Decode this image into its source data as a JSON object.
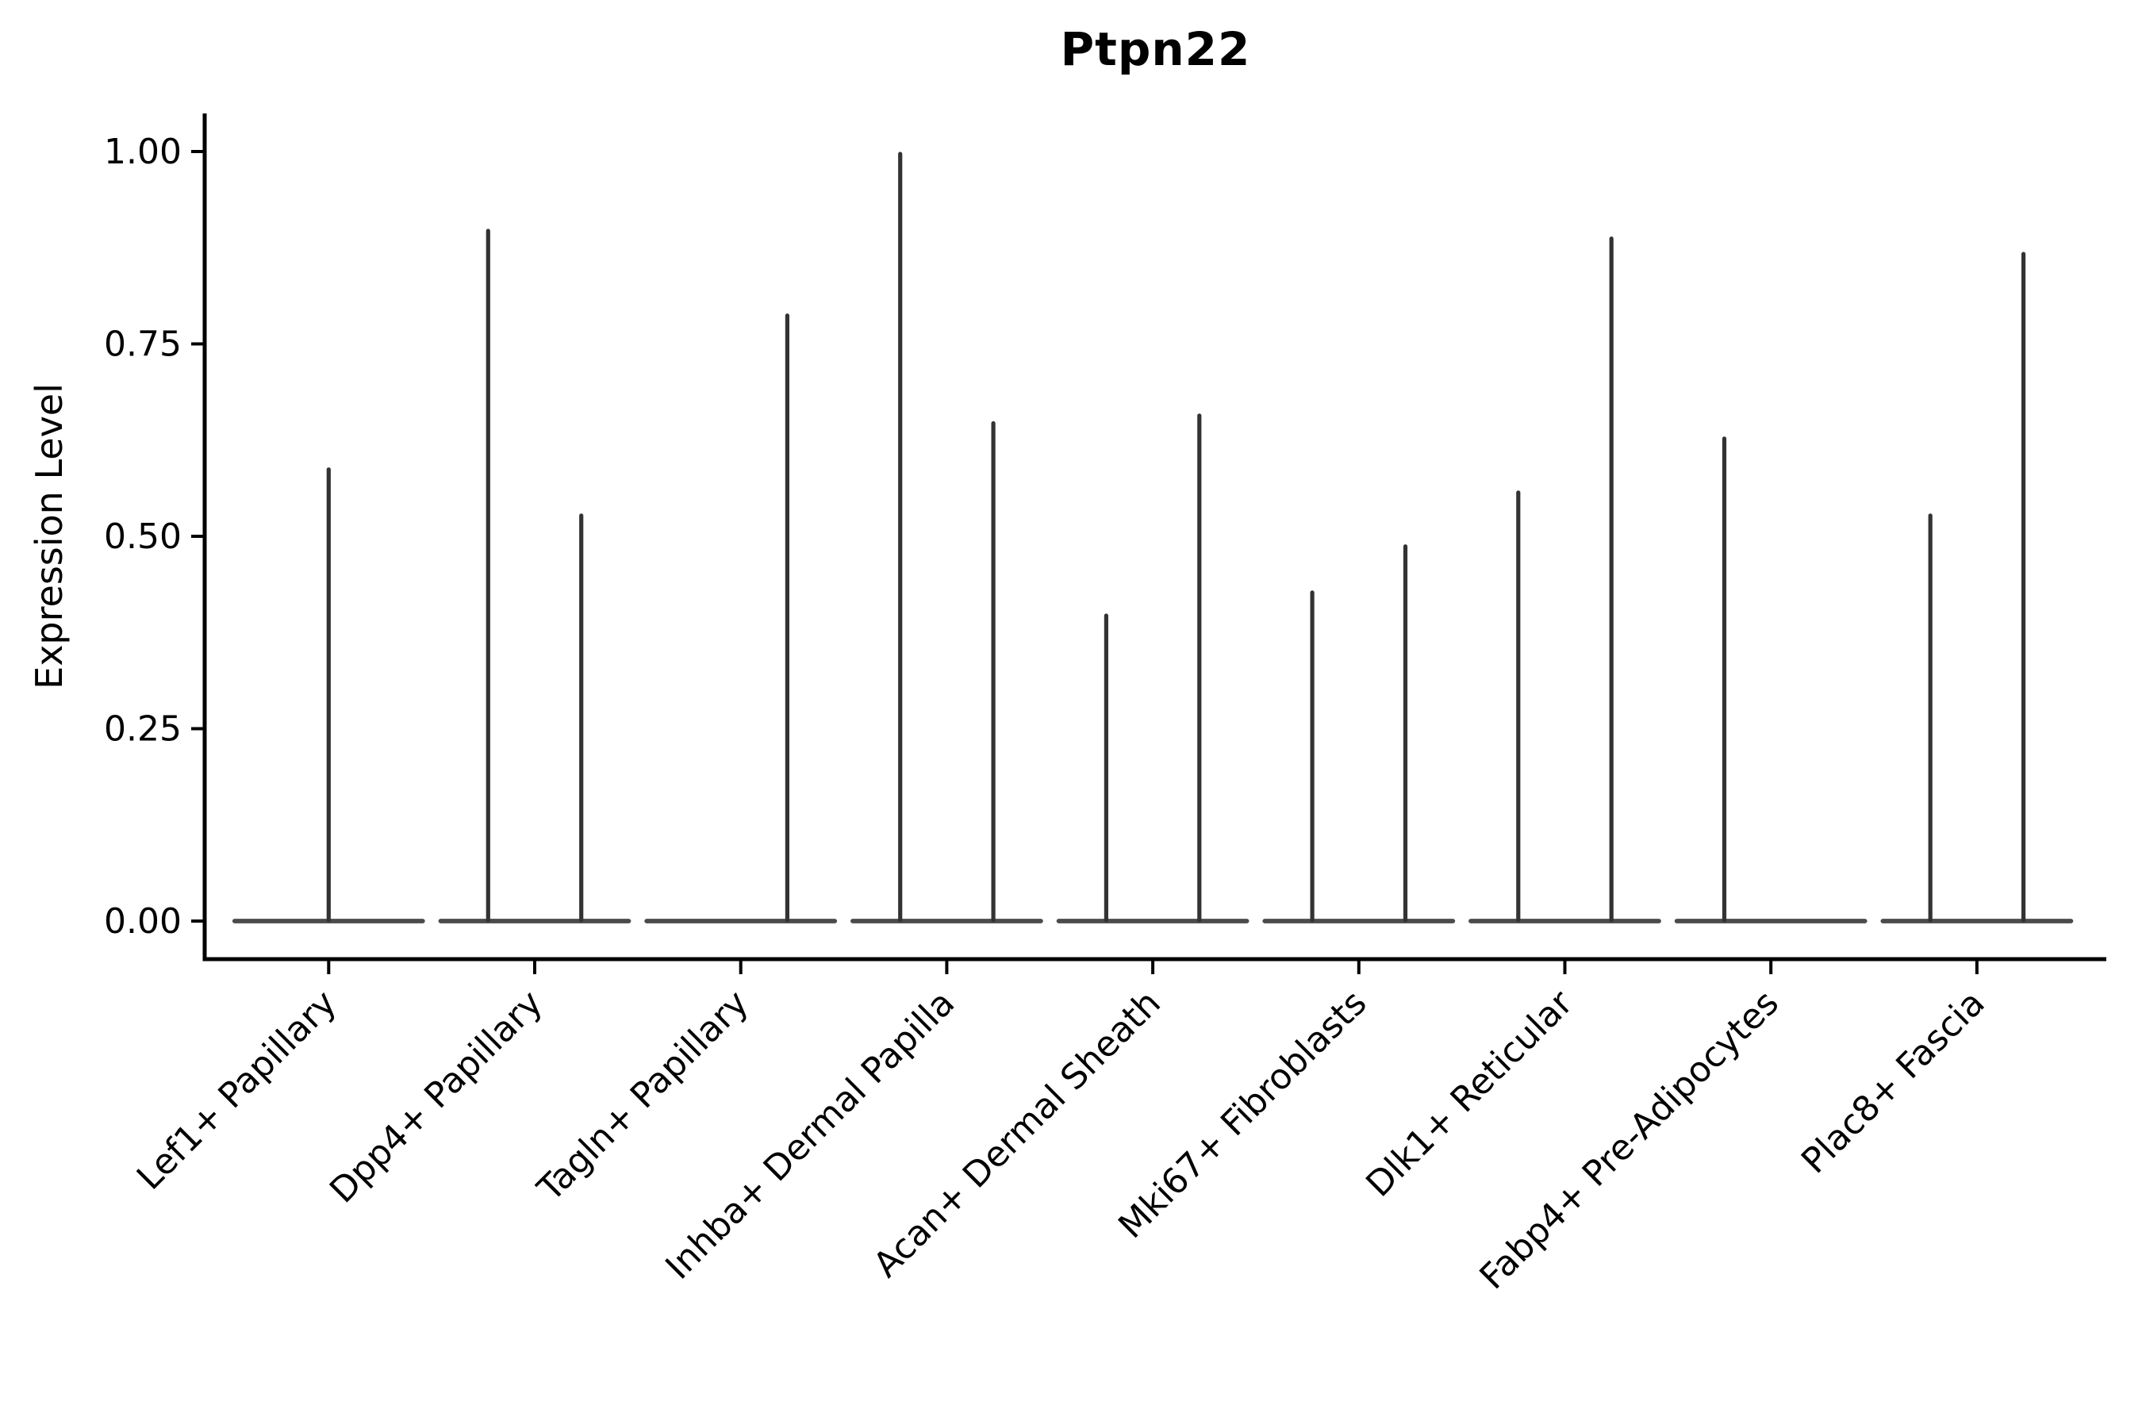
{
  "figure": {
    "title": "Ptpn22",
    "background_color": "#ffffff",
    "axis_color": "#000000",
    "violin_color": "#333333",
    "baseline_color": "#3c3c3c",
    "text_color": "#000000"
  },
  "chart_data": {
    "type": "violin",
    "title": "Ptpn22",
    "xlabel": "",
    "ylabel": "Expression Level",
    "ylim": [
      0,
      1
    ],
    "ytick_values": [
      0,
      0.25,
      0.5,
      0.75,
      1.0
    ],
    "ytick_labels": [
      "0.00",
      "0.25",
      "0.50",
      "0.75",
      "1.00"
    ],
    "grid": false,
    "legend": "none",
    "x_label_rotation_deg": 45,
    "categories": [
      "Lef1+ Papillary",
      "Dpp4+ Papillary",
      "Tagln+ Papillary",
      "Inhba+ Dermal Papilla",
      "Acan+ Dermal Sheath",
      "Mki67+ Fibroblasts",
      "Dlk1+ Reticular",
      "Fabp4+ Pre-Adipocytes",
      "Plac8+ Fascia"
    ],
    "description": "Each category shows a flat violin base at expression 0 with thin vertical spikes marking sparse non-zero expression; spikes sit at the category center or at left/right dodged sub-violin positions.",
    "violins": [
      {
        "category": "Lef1+ Papillary",
        "baseline_value": 0,
        "spikes": [
          {
            "slot": "center",
            "max": 0.59
          }
        ]
      },
      {
        "category": "Dpp4+ Papillary",
        "baseline_value": 0,
        "spikes": [
          {
            "slot": "left",
            "max": 0.9
          },
          {
            "slot": "right",
            "max": 0.53
          }
        ]
      },
      {
        "category": "Tagln+ Papillary",
        "baseline_value": 0,
        "spikes": [
          {
            "slot": "right",
            "max": 0.79
          }
        ]
      },
      {
        "category": "Inhba+ Dermal Papilla",
        "baseline_value": 0,
        "spikes": [
          {
            "slot": "left",
            "max": 1.0
          },
          {
            "slot": "right",
            "max": 0.65
          }
        ]
      },
      {
        "category": "Acan+ Dermal Sheath",
        "baseline_value": 0,
        "spikes": [
          {
            "slot": "left",
            "max": 0.4
          },
          {
            "slot": "right",
            "max": 0.66
          }
        ]
      },
      {
        "category": "Mki67+ Fibroblasts",
        "baseline_value": 0,
        "spikes": [
          {
            "slot": "left",
            "max": 0.43
          },
          {
            "slot": "right",
            "max": 0.49
          }
        ]
      },
      {
        "category": "Dlk1+ Reticular",
        "baseline_value": 0,
        "spikes": [
          {
            "slot": "left",
            "max": 0.56
          },
          {
            "slot": "right",
            "max": 0.89
          }
        ]
      },
      {
        "category": "Fabp4+ Pre-Adipocytes",
        "baseline_value": 0,
        "spikes": [
          {
            "slot": "left",
            "max": 0.63
          }
        ]
      },
      {
        "category": "Plac8+ Fascia",
        "baseline_value": 0,
        "spikes": [
          {
            "slot": "left",
            "max": 0.53
          },
          {
            "slot": "right",
            "max": 0.87
          }
        ]
      }
    ]
  }
}
